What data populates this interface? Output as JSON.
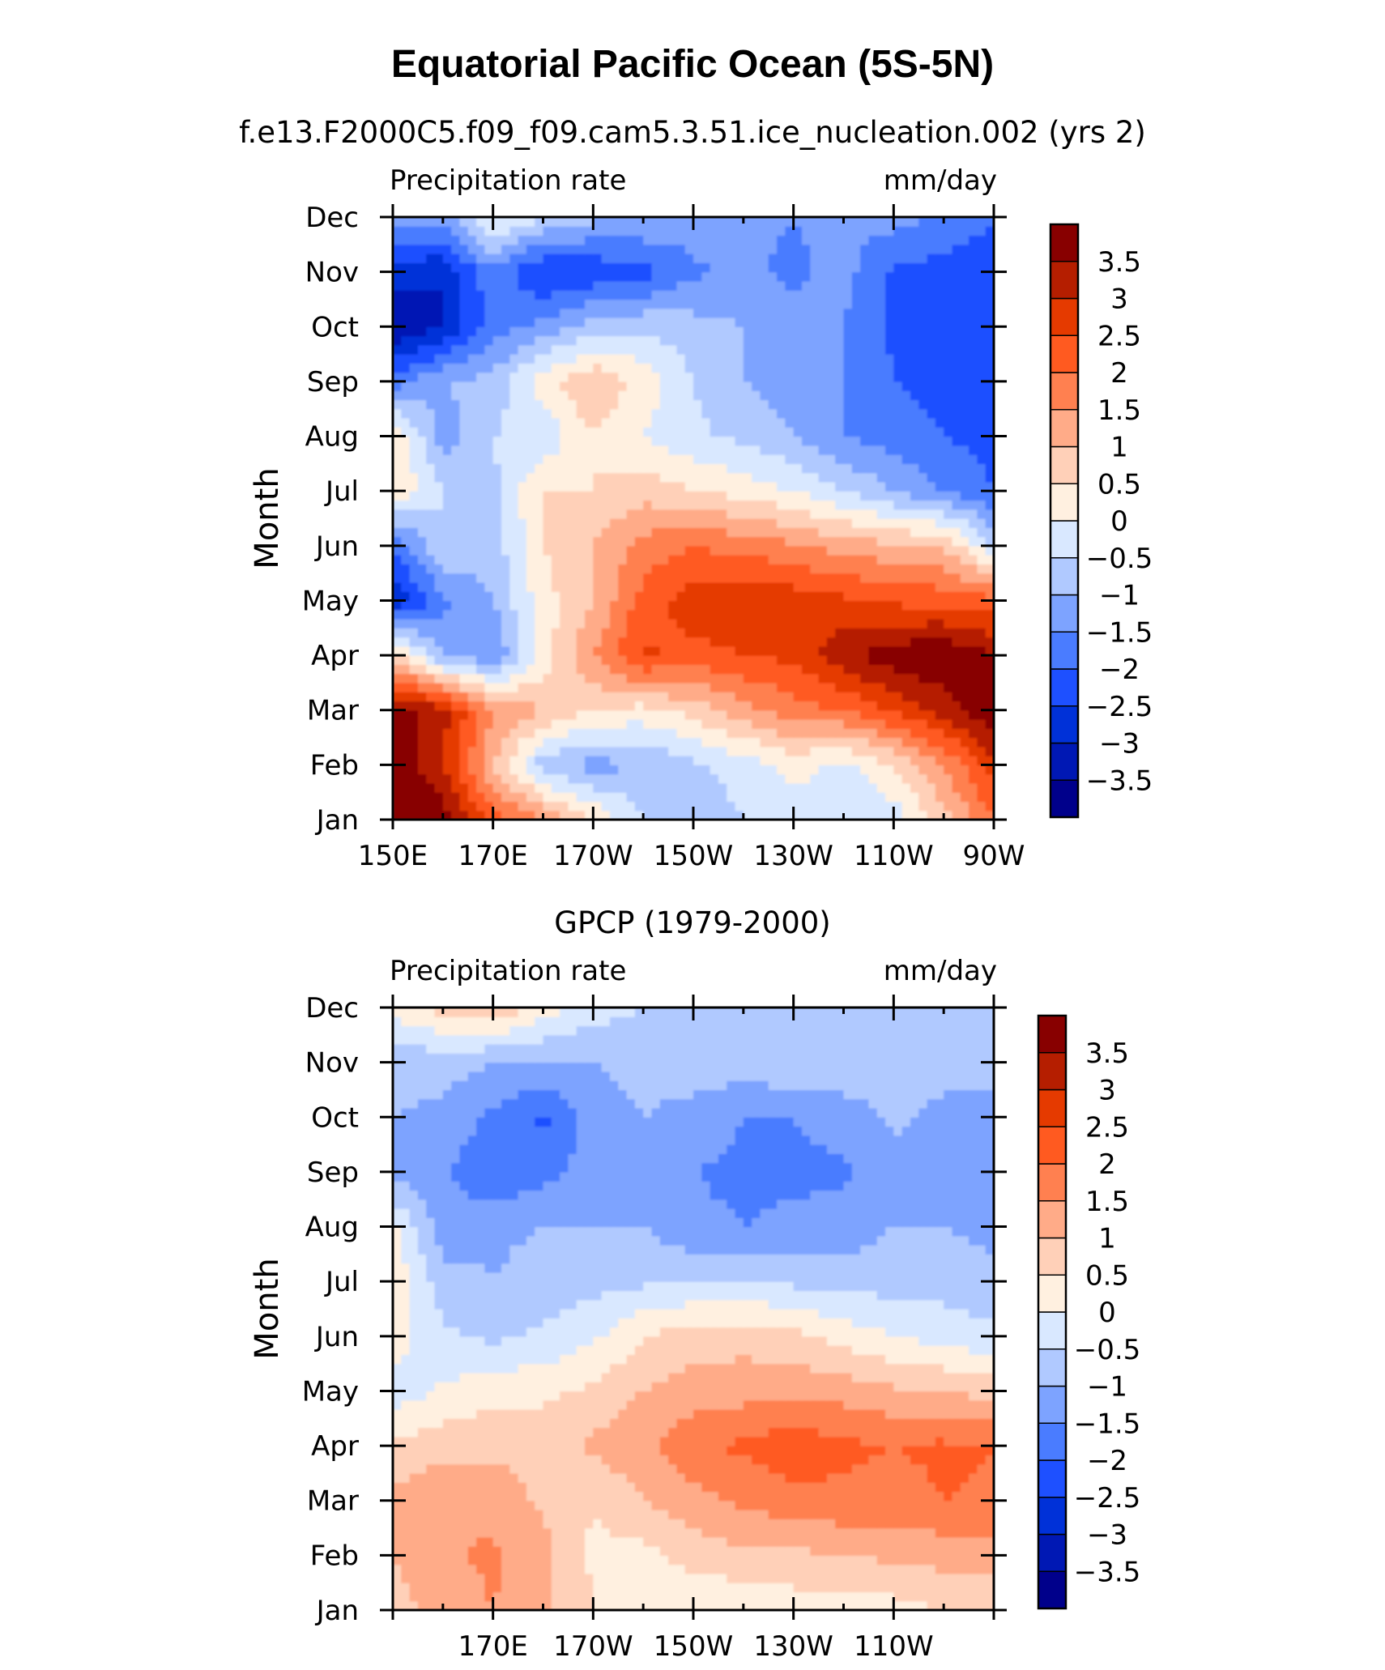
{
  "figure": {
    "title": "Equatorial Pacific Ocean (5S-5N)",
    "subtitle": "f.e13.F2000C5.f09_f09.cam5.3.51.ice_nucleation.002 (yrs 2)"
  },
  "colorbar": {
    "colors": [
      "#00008b",
      "#0018b4",
      "#0031d8",
      "#1e50ff",
      "#4a7cff",
      "#7da3ff",
      "#b0c9ff",
      "#d9e8ff",
      "#fff0e0",
      "#ffd0b8",
      "#ffab88",
      "#ff8050",
      "#ff5a20",
      "#e53a00",
      "#b51e00",
      "#880000"
    ],
    "labels": [
      "-3.5",
      "-3",
      "-2.5",
      "-2",
      "-1.5",
      "-1",
      "-0.5",
      "0",
      "0.5",
      "1",
      "1.5",
      "2",
      "2.5",
      "3",
      "3.5"
    ]
  },
  "chart_data": [
    {
      "type": "heatmap",
      "title": "",
      "left_label": "Precipitation rate",
      "right_label": "mm/day",
      "ylabel": "Month",
      "xlabel": "",
      "x_ticklabels": [
        "150E",
        "170E",
        "170W",
        "150W",
        "130W",
        "110W",
        "90W"
      ],
      "y_ticklabels": [
        "Jan",
        "Feb",
        "Mar",
        "Apr",
        "May",
        "Jun",
        "Jul",
        "Aug",
        "Sep",
        "Oct",
        "Nov",
        "Dec"
      ],
      "x_lon": [
        150,
        160,
        170,
        180,
        190,
        200,
        210,
        220,
        230,
        240,
        250,
        260,
        270
      ],
      "contour_levels": [
        -3.5,
        -3,
        -2.5,
        -2,
        -1.5,
        -1,
        -0.5,
        0,
        0.5,
        1,
        1.5,
        2,
        2.5,
        3,
        3.5
      ],
      "values": [
        [
          4.2,
          3.8,
          2.3,
          1.5,
          0.5,
          -0.5,
          -0.8,
          -0.5,
          -0.3,
          -0.3,
          -0.3,
          0.8,
          2.0
        ],
        [
          4.0,
          3.0,
          1.0,
          -0.8,
          -1.2,
          -1.0,
          -0.6,
          -0.3,
          0.2,
          -0.2,
          0.5,
          1.5,
          2.8
        ],
        [
          3.8,
          3.2,
          1.6,
          1.0,
          0.5,
          0.3,
          0.7,
          1.3,
          1.8,
          2.0,
          2.6,
          3.2,
          4.0
        ],
        [
          0.8,
          -1.0,
          -1.5,
          0.2,
          1.5,
          2.6,
          2.3,
          2.5,
          2.6,
          3.4,
          3.8,
          4.0,
          3.5
        ],
        [
          -3.0,
          -1.6,
          -1.0,
          0.3,
          1.0,
          2.2,
          2.8,
          3.0,
          2.8,
          2.6,
          2.4,
          2.3,
          2.2
        ],
        [
          -2.0,
          -0.5,
          -0.8,
          0.5,
          1.0,
          1.7,
          2.0,
          1.8,
          1.6,
          1.3,
          1.1,
          1.0,
          -0.5
        ],
        [
          0.5,
          -0.5,
          -0.6,
          0.5,
          0.5,
          0.8,
          0.5,
          0.3,
          0.0,
          -0.5,
          -1.0,
          -1.5,
          -2.0
        ],
        [
          0.6,
          -1.3,
          -0.5,
          -0.4,
          0.5,
          0.0,
          -0.4,
          -0.6,
          -1.0,
          -1.5,
          -1.7,
          -2.0,
          -2.2
        ],
        [
          -1.8,
          -1.0,
          -0.8,
          0.3,
          1.0,
          0.3,
          -0.5,
          -1.0,
          -1.3,
          -1.5,
          -2.0,
          -2.2,
          -2.3
        ],
        [
          -3.6,
          -3.0,
          -1.8,
          -1.3,
          -0.8,
          -0.6,
          -0.8,
          -1.0,
          -1.3,
          -1.5,
          -2.1,
          -2.2,
          -2.4
        ],
        [
          -2.8,
          -3.0,
          -1.6,
          -2.6,
          -2.4,
          -2.2,
          -1.6,
          -1.4,
          -1.6,
          -1.3,
          -2.1,
          -2.2,
          -2.3
        ],
        [
          -1.2,
          -1.2,
          0.2,
          -0.5,
          -0.9,
          -1.0,
          -1.2,
          -1.4,
          -1.5,
          -1.4,
          -1.3,
          -1.6,
          -2.0
        ]
      ]
    },
    {
      "type": "heatmap",
      "title": "GPCP (1979-2000)",
      "left_label": "Precipitation rate",
      "right_label": "mm/day",
      "ylabel": "Month",
      "xlabel": "",
      "x_ticklabels": [
        "170E",
        "170W",
        "150W",
        "130W",
        "110W"
      ],
      "y_ticklabels": [
        "Jan",
        "Feb",
        "Mar",
        "Apr",
        "May",
        "Jun",
        "Jul",
        "Aug",
        "Sep",
        "Oct",
        "Nov",
        "Dec"
      ],
      "x_lon": [
        150,
        160,
        170,
        180,
        190,
        200,
        210,
        220,
        230,
        240,
        250,
        260,
        270
      ],
      "contour_levels": [
        -3.5,
        -3,
        -2.5,
        -2,
        -1.5,
        -1,
        -0.5,
        0,
        0.5,
        1,
        1.5,
        2,
        2.5,
        3,
        3.5
      ],
      "values": [
        [
          0.8,
          1.2,
          1.5,
          1.1,
          0.5,
          0.2,
          0.1,
          0.0,
          0.2,
          0.3,
          0.3,
          0.5,
          0.6
        ],
        [
          1.0,
          1.4,
          1.6,
          1.2,
          0.4,
          0.3,
          0.7,
          0.9,
          0.9,
          1.0,
          1.1,
          1.2,
          1.3
        ],
        [
          1.1,
          1.5,
          1.3,
          0.9,
          0.5,
          1.0,
          1.3,
          1.6,
          1.8,
          1.9,
          1.8,
          2.0,
          1.9
        ],
        [
          0.6,
          0.8,
          0.9,
          0.8,
          1.1,
          1.4,
          1.9,
          2.1,
          2.4,
          2.1,
          2.0,
          2.1,
          2.0
        ],
        [
          -0.3,
          0.1,
          0.3,
          0.4,
          0.6,
          1.0,
          1.2,
          1.3,
          1.3,
          1.3,
          1.1,
          1.0,
          0.8
        ],
        [
          0.3,
          -0.4,
          -0.6,
          -0.4,
          -0.1,
          0.5,
          0.8,
          0.8,
          0.7,
          0.3,
          0.0,
          -0.2,
          -0.4
        ],
        [
          0.4,
          -0.8,
          -1.0,
          -0.8,
          -0.7,
          -0.6,
          -0.5,
          -0.5,
          -0.6,
          -0.7,
          -0.7,
          -0.7,
          -0.8
        ],
        [
          0.1,
          -1.3,
          -1.1,
          -1.0,
          -1.0,
          -1.0,
          -1.4,
          -1.5,
          -1.4,
          -1.3,
          -1.0,
          -1.0,
          -1.2
        ],
        [
          -1.2,
          -1.4,
          -2.0,
          -1.7,
          -1.2,
          -1.1,
          -1.5,
          -1.6,
          -1.6,
          -1.6,
          -1.2,
          -1.2,
          -1.5
        ],
        [
          -1.0,
          -1.1,
          -1.6,
          -2.1,
          -1.3,
          -1.0,
          -1.2,
          -1.5,
          -1.5,
          -1.3,
          -0.9,
          -1.2,
          -1.3
        ],
        [
          -0.9,
          -0.8,
          -1.0,
          -1.1,
          -1.0,
          -0.8,
          -0.7,
          -0.7,
          -0.6,
          -0.6,
          -0.6,
          -0.7,
          -0.8
        ],
        [
          0.2,
          0.7,
          0.9,
          0.3,
          -0.3,
          -0.5,
          -0.6,
          -0.6,
          -0.7,
          -0.8,
          -0.8,
          -0.8,
          -0.9
        ]
      ]
    }
  ]
}
